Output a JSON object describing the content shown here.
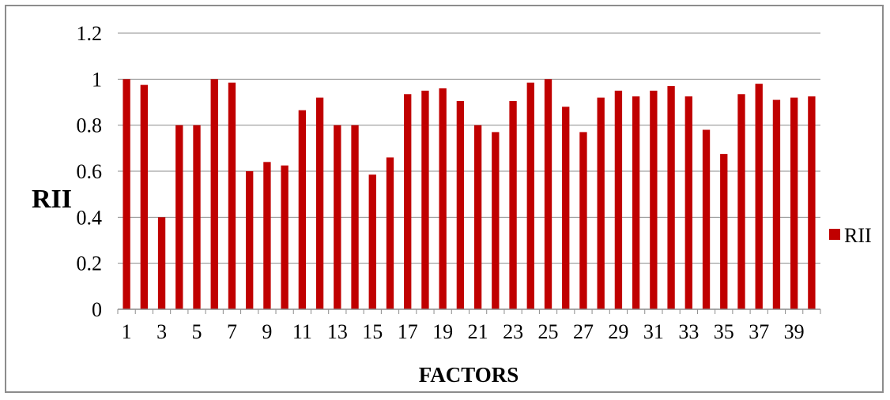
{
  "chart_data": {
    "type": "bar",
    "title": "",
    "xlabel": "FACTORS",
    "ylabel": "RII",
    "ylim": [
      0,
      1.2
    ],
    "yticks": [
      "0",
      "0.2",
      "0.4",
      "0.6",
      "0.8",
      "1",
      "1.2"
    ],
    "grid": true,
    "legend_position": "right",
    "bar_color": "#C00000",
    "categories": [
      1,
      2,
      3,
      4,
      5,
      6,
      7,
      8,
      9,
      10,
      11,
      12,
      13,
      14,
      15,
      16,
      17,
      18,
      19,
      20,
      21,
      22,
      23,
      24,
      25,
      26,
      27,
      28,
      29,
      30,
      31,
      32,
      33,
      34,
      35,
      36,
      37,
      38,
      39,
      40
    ],
    "x_tick_labels": [
      "1",
      "3",
      "5",
      "7",
      "9",
      "11",
      "13",
      "15",
      "17",
      "19",
      "21",
      "23",
      "25",
      "27",
      "29",
      "31",
      "33",
      "35",
      "37",
      "39"
    ],
    "series": [
      {
        "name": "RII",
        "values": [
          1.0,
          0.975,
          0.4,
          0.8,
          0.8,
          1.0,
          0.985,
          0.6,
          0.64,
          0.625,
          0.865,
          0.92,
          0.8,
          0.8,
          0.585,
          0.66,
          0.935,
          0.95,
          0.96,
          0.905,
          0.8,
          0.77,
          0.905,
          0.985,
          1.0,
          0.88,
          0.77,
          0.92,
          0.95,
          0.925,
          0.95,
          0.97,
          0.925,
          0.78,
          0.675,
          0.935,
          0.98,
          0.91,
          0.92,
          0.925
        ]
      }
    ]
  }
}
